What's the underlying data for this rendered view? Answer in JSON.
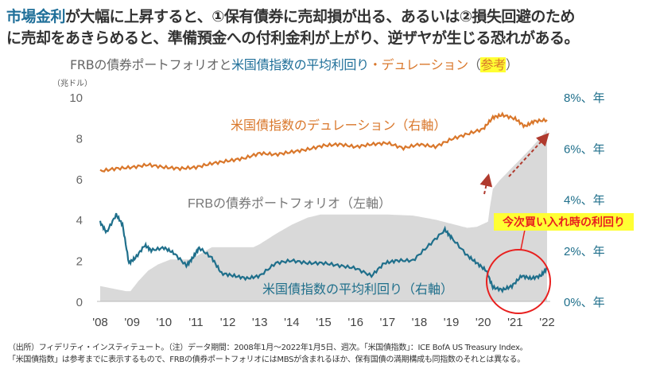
{
  "headline": {
    "highlight": "市場金利",
    "line1_rest": "が大幅に上昇すると、①保有債券に売却損が出る、あるいは②損失回避のため",
    "line2": "に売却をあきらめると、準備預金への付利金利が上がり、逆ザヤが生じる恐れがある。"
  },
  "chart_data": {
    "type": "line",
    "title_parts": {
      "part1": "FRBの債券ポートフォリオと",
      "part2": "米国債指数の平均利回り",
      "part3": "・",
      "part4": "デュレーション",
      "open": "（",
      "ref": "参考",
      "close": "）"
    },
    "left_unit": "（兆ドル）",
    "left_axis": {
      "range": [
        0,
        10
      ],
      "ticks": [
        "0",
        "2",
        "4",
        "6",
        "8",
        "10"
      ]
    },
    "right_axis": {
      "range": [
        0,
        8
      ],
      "ticks": [
        "0%、年",
        "2%、年",
        "4%、年",
        "6%、年",
        "8%、年"
      ]
    },
    "x_axis": {
      "range": [
        2008,
        2022
      ],
      "ticks": [
        "'08",
        "'09",
        "'10",
        "'11",
        "'12",
        "'13",
        "'14",
        "'15",
        "'16",
        "'17",
        "'18",
        "'19",
        "'20",
        "'21",
        "'22"
      ]
    },
    "series": [
      {
        "name": "FRBの債券ポートフォリオ（左軸）",
        "axis": "left",
        "type": "area",
        "color": "#d9d9d9",
        "x": [
          2008,
          2008.8,
          2008.95,
          2009.2,
          2009.5,
          2009.8,
          2010.2,
          2010.8,
          2011.0,
          2011.5,
          2012.0,
          2012.8,
          2013.0,
          2013.5,
          2014.0,
          2014.5,
          2014.9,
          2016.0,
          2017.0,
          2017.8,
          2018.5,
          2019.0,
          2019.5,
          2019.8,
          2020.15,
          2020.2,
          2020.3,
          2020.5,
          2021.0,
          2021.5,
          2022.0
        ],
        "values": [
          0.75,
          0.5,
          0.5,
          1.0,
          1.5,
          1.8,
          2.05,
          2.05,
          2.2,
          2.65,
          2.65,
          2.65,
          2.8,
          3.3,
          3.75,
          4.1,
          4.25,
          4.25,
          4.25,
          4.2,
          4.0,
          3.8,
          3.6,
          3.65,
          3.9,
          4.5,
          5.5,
          5.9,
          6.7,
          7.5,
          8.4
        ]
      },
      {
        "name": "米国債指数のデュレーション（右軸）",
        "axis": "right",
        "type": "line",
        "color": "#d9772b",
        "x": [
          2008,
          2008.5,
          2009,
          2009.5,
          2010,
          2010.5,
          2011,
          2011.5,
          2012,
          2012.5,
          2013,
          2013.5,
          2014,
          2014.5,
          2015,
          2015.5,
          2016,
          2016.5,
          2017,
          2017.5,
          2018,
          2018.5,
          2019,
          2019.5,
          2020,
          2020.3,
          2020.6,
          2021,
          2021.3,
          2021.6,
          2022
        ],
        "values": [
          5.1,
          5.2,
          5.25,
          5.35,
          5.25,
          5.2,
          5.25,
          5.4,
          5.5,
          5.6,
          5.8,
          5.75,
          5.85,
          5.95,
          6.1,
          6.15,
          6.05,
          6.15,
          6.2,
          6.0,
          6.15,
          6.05,
          6.35,
          6.55,
          6.75,
          7.2,
          7.3,
          7.15,
          6.85,
          7.05,
          7.1
        ]
      },
      {
        "name": "米国債指数の平均利回り（右軸）",
        "axis": "right",
        "type": "line",
        "color": "#1f6f8b",
        "x": [
          2008,
          2008.2,
          2008.5,
          2008.7,
          2008.9,
          2009.1,
          2009.4,
          2009.6,
          2010.0,
          2010.3,
          2010.7,
          2010.9,
          2011.1,
          2011.5,
          2011.8,
          2012.2,
          2012.6,
          2013.0,
          2013.5,
          2014.0,
          2014.5,
          2015.0,
          2015.5,
          2016.0,
          2016.5,
          2016.9,
          2017.3,
          2017.8,
          2018.3,
          2018.8,
          2019.0,
          2019.5,
          2019.8,
          2020.1,
          2020.3,
          2020.6,
          2020.9,
          2021.2,
          2021.5,
          2021.8,
          2022.0
        ],
        "values": [
          3.1,
          2.7,
          3.4,
          3.0,
          1.5,
          1.7,
          2.2,
          2.0,
          2.1,
          1.9,
          1.4,
          1.7,
          2.1,
          1.7,
          1.1,
          1.0,
          0.9,
          1.0,
          1.5,
          1.6,
          1.5,
          1.5,
          1.4,
          1.3,
          1.0,
          1.5,
          1.6,
          1.6,
          2.2,
          2.8,
          2.5,
          1.8,
          1.5,
          1.2,
          0.55,
          0.45,
          0.6,
          1.0,
          0.9,
          1.0,
          1.3
        ]
      }
    ],
    "series_labels": {
      "duration": "米国債指数のデュレーション（右軸）",
      "portfolio": "FRBの債券ポートフォリオ（左軸）",
      "yield": "米国債指数の平均利回り（右軸）"
    },
    "annotation": "今次買い入れ時の利回り",
    "annotation_color": "#e8201f",
    "grid": false
  },
  "footnote": {
    "line1": "（出所）フィデリティ・インスティテュート。（注）データ期間：2008年1月～2022年1月5日、週次。「米国債指数」：ICE BofA US Treasury Index。",
    "line2": "「米国債指数」は参考までに表示するもので、FRBの債券ポートフォリオにはMBSが含まれるほか、保有国債の満期構成も同指数のそれとは異なる。"
  }
}
